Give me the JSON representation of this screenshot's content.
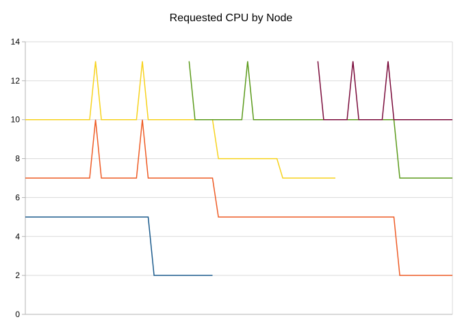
{
  "chart_data": {
    "type": "line",
    "title": "Requested CPU by Node",
    "xlabel": "",
    "ylabel": "",
    "ylim": [
      0,
      14
    ],
    "yticks": [
      "0",
      "2",
      "4",
      "6",
      "8",
      "10",
      "12",
      "14"
    ],
    "grid": true,
    "legend": "none",
    "x_points": 73,
    "series": [
      {
        "color": "#1a5a8c",
        "points": [
          [
            0,
            5
          ],
          [
            21,
            5
          ],
          [
            22,
            2
          ],
          [
            32,
            2
          ]
        ]
      },
      {
        "color": "#ee5a24",
        "points": [
          [
            0,
            7
          ],
          [
            11,
            7
          ],
          [
            12,
            10
          ],
          [
            13,
            7
          ],
          [
            19,
            7
          ],
          [
            20,
            10
          ],
          [
            21,
            7
          ],
          [
            32,
            7
          ],
          [
            33,
            5
          ],
          [
            63,
            5
          ],
          [
            64,
            2
          ],
          [
            73,
            2
          ]
        ]
      },
      {
        "color": "#f7d21c",
        "points": [
          [
            0,
            10
          ],
          [
            11,
            10
          ],
          [
            12,
            13
          ],
          [
            13,
            10
          ],
          [
            19,
            10
          ],
          [
            20,
            13
          ],
          [
            21,
            10
          ],
          [
            32,
            10
          ],
          [
            33,
            8
          ],
          [
            43,
            8
          ],
          [
            44,
            7
          ],
          [
            53,
            7
          ]
        ]
      },
      {
        "color": "#5a9a1a",
        "points": [
          [
            28,
            13
          ],
          [
            29,
            10
          ],
          [
            37,
            10
          ],
          [
            38,
            13
          ],
          [
            39,
            10
          ],
          [
            63,
            10
          ],
          [
            64,
            7
          ],
          [
            73,
            7
          ]
        ]
      },
      {
        "color": "#7a0a3a",
        "points": [
          [
            50,
            13
          ],
          [
            51,
            10
          ],
          [
            55,
            10
          ],
          [
            56,
            13
          ],
          [
            57,
            10
          ],
          [
            61,
            10
          ],
          [
            62,
            13
          ],
          [
            63,
            10
          ],
          [
            73,
            10
          ]
        ]
      }
    ]
  }
}
